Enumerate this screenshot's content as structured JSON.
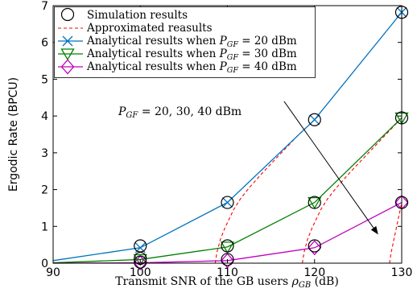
{
  "chart_data": {
    "type": "line",
    "xlabel": "Transmit SNR of the GB users ρ_GB (dB)",
    "ylabel": "Ergodic Rate (BPCU)",
    "xlim": [
      90,
      130
    ],
    "ylim": [
      0,
      7
    ],
    "xticks": [
      90,
      100,
      110,
      120,
      130
    ],
    "yticks": [
      0,
      1,
      2,
      3,
      4,
      5,
      6,
      7
    ],
    "grid": false,
    "legend_placement": "top-left",
    "legend": [
      {
        "label": "Simulation results",
        "marker": "circle",
        "color": "#000000"
      },
      {
        "label": "Approximated reasults",
        "style": "dashed",
        "color": "#ff0000"
      },
      {
        "label": "Analytical results when P_GF = 20 dBm",
        "marker": "x",
        "color": "#0072bd"
      },
      {
        "label": "Analytical results when P_GF = 30 dBm",
        "marker": "triangle-down",
        "color": "#008000"
      },
      {
        "label": "Analytical results when P_GF = 40 dBm",
        "marker": "diamond",
        "color": "#bf00bf"
      }
    ],
    "series": [
      {
        "key": "analytical-20",
        "color": "#0072bd",
        "marker": "x",
        "x": [
          90,
          100,
          110,
          120,
          130
        ],
        "y": [
          0.07,
          0.42,
          1.65,
          3.9,
          6.82
        ]
      },
      {
        "key": "analytical-30",
        "color": "#008000",
        "marker": "triangle-down",
        "x": [
          90,
          100,
          110,
          120,
          130
        ],
        "y": [
          0.01,
          0.1,
          0.44,
          1.65,
          3.95
        ]
      },
      {
        "key": "analytical-40",
        "color": "#bf00bf",
        "marker": "diamond",
        "x": [
          90,
          100,
          110,
          120,
          130
        ],
        "y": [
          0.0,
          0.01,
          0.07,
          0.42,
          1.65
        ]
      }
    ],
    "simulation_points": [
      {
        "x": 100,
        "y": 0.47
      },
      {
        "x": 110,
        "y": 1.65
      },
      {
        "x": 120,
        "y": 3.9
      },
      {
        "x": 130,
        "y": 6.82
      },
      {
        "x": 100,
        "y": 0.13
      },
      {
        "x": 110,
        "y": 0.47
      },
      {
        "x": 120,
        "y": 1.65
      },
      {
        "x": 130,
        "y": 3.95
      },
      {
        "x": 100,
        "y": 0.03
      },
      {
        "x": 110,
        "y": 0.1
      },
      {
        "x": 120,
        "y": 0.47
      },
      {
        "x": 130,
        "y": 1.65
      }
    ],
    "approximated": [
      {
        "x": [
          108.6,
          108.8,
          109.2,
          109.7,
          110.2,
          110.7,
          111.5,
          112.5,
          114,
          116,
          118,
          120
        ],
        "y": [
          0.0,
          0.3,
          0.65,
          0.95,
          1.2,
          1.45,
          1.75,
          2.05,
          2.45,
          2.95,
          3.45,
          3.9
        ]
      },
      {
        "x": [
          118.6,
          118.8,
          119.2,
          119.7,
          120.2,
          120.7,
          121.5,
          122.5,
          124,
          126,
          128,
          130
        ],
        "y": [
          0.0,
          0.3,
          0.65,
          0.95,
          1.2,
          1.45,
          1.75,
          2.05,
          2.45,
          2.95,
          3.45,
          3.95
        ]
      },
      {
        "x": [
          128.6,
          128.8,
          129.2,
          129.6,
          130
        ],
        "y": [
          0.0,
          0.3,
          0.75,
          1.2,
          1.65
        ]
      }
    ],
    "annotation": {
      "text": "P_GF = 20, 30, 40 dBm",
      "arrow_from": [
        116.5,
        4.4
      ],
      "arrow_to": [
        127.3,
        0.78
      ]
    }
  }
}
